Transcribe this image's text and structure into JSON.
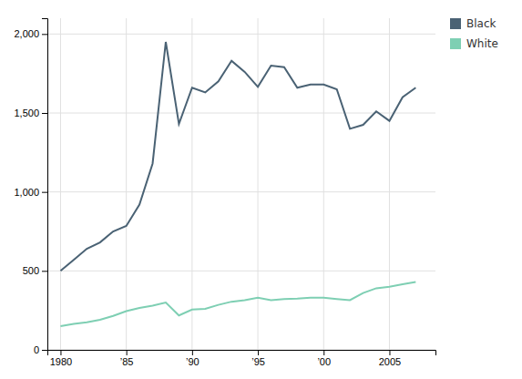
{
  "chart_data": {
    "type": "line",
    "x": [
      1980,
      1981,
      1982,
      1983,
      1984,
      1985,
      1986,
      1987,
      1988,
      1989,
      1990,
      1991,
      1992,
      1993,
      1994,
      1995,
      1996,
      1997,
      1998,
      1999,
      2000,
      2001,
      2002,
      2003,
      2004,
      2005,
      2006,
      2007
    ],
    "series": [
      {
        "name": "Black",
        "color": "#4a6274",
        "values": [
          500,
          570,
          640,
          680,
          750,
          785,
          920,
          1180,
          1950,
          1430,
          1660,
          1630,
          1700,
          1830,
          1760,
          1665,
          1800,
          1790,
          1660,
          1680,
          1680,
          1650,
          1400,
          1425,
          1510,
          1450,
          1600,
          1660
        ]
      },
      {
        "name": "White",
        "color": "#7ecfb3",
        "values": [
          150,
          165,
          175,
          190,
          215,
          245,
          265,
          280,
          300,
          218,
          255,
          260,
          285,
          305,
          315,
          330,
          315,
          322,
          325,
          330,
          330,
          322,
          315,
          360,
          390,
          400,
          415,
          430
        ]
      }
    ],
    "xlim": [
      1979,
      2008.5
    ],
    "xticks": [
      1980,
      {
        "value": 1985,
        "label": "’85"
      },
      {
        "value": 1990,
        "label": "’90"
      },
      {
        "value": 1995,
        "label": "’95"
      },
      {
        "value": 2000,
        "label": "’00"
      },
      2005
    ],
    "ylim": [
      0,
      2100
    ],
    "yticks": [
      0,
      500,
      {
        "value": 1000,
        "label": "1,000"
      },
      {
        "value": 1500,
        "label": "1,500"
      },
      {
        "value": 2000,
        "label": "2,000"
      }
    ],
    "grid": true,
    "legend": "right"
  }
}
